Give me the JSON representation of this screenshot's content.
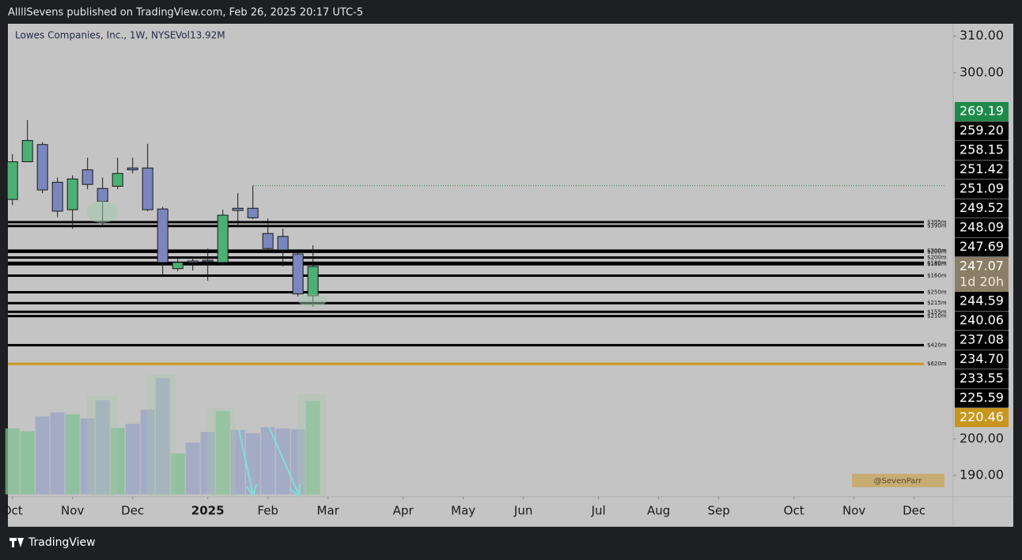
{
  "header": {
    "publisher": "AllllSevens published on TradingView.com, Feb 26, 2025 20:17 UTC-5"
  },
  "chart_data": {
    "type": "candlestick",
    "title": "Lowes Companies, Inc., 1W, NYSE",
    "volume_legend": "Vol13.92M",
    "x": [
      0,
      1,
      2,
      3,
      4,
      5,
      6,
      7,
      8,
      9,
      10,
      11,
      12,
      13,
      14,
      15,
      16,
      17,
      18,
      19,
      20
    ],
    "open": [
      265.4,
      275.7,
      280.4,
      270.1,
      262.6,
      273.5,
      268.4,
      269.0,
      274.0,
      274.0,
      262.8,
      246.5,
      248.6,
      248.8,
      248.2,
      263.0,
      263.0,
      256.1,
      255.3,
      250.5,
      239.1
    ],
    "high": [
      277.8,
      287.1,
      281.1,
      271.4,
      272.0,
      276.8,
      271.4,
      276.8,
      276.8,
      280.6,
      263.4,
      249.2,
      249.7,
      252.0,
      262.6,
      267.1,
      269.2,
      260.2,
      257.4,
      251.0,
      252.9
    ],
    "low": [
      263.9,
      275.7,
      267.1,
      260.6,
      257.4,
      268.2,
      258.5,
      268.2,
      272.5,
      262.2,
      244.5,
      245.8,
      246.0,
      243.2,
      247.5,
      257.8,
      260.0,
      251.4,
      247.1,
      238.9,
      236.1
    ],
    "close": [
      275.7,
      281.5,
      268.0,
      262.2,
      271.0,
      269.5,
      264.9,
      272.5,
      273.5,
      262.6,
      248.2,
      248.2,
      248.2,
      248.4,
      261.1,
      262.4,
      260.4,
      252.0,
      251.6,
      239.6,
      247.1
    ],
    "volume": [
      9.8,
      9.4,
      11.6,
      12.2,
      11.9,
      11.3,
      14.0,
      9.9,
      10.5,
      12.6,
      17.3,
      6.1,
      7.7,
      9.3,
      12.4,
      9.6,
      9.1,
      10.0,
      9.8,
      9.7,
      13.92
    ],
    "up_color": "#4caf73",
    "down_color": "#7a86bd",
    "volume_up_color": "#7fbf93",
    "volume_down_color": "#9aa3c6",
    "xlim": [
      -0.3,
      62.6
    ],
    "xticks": [
      {
        "value": 0,
        "label": "Oct"
      },
      {
        "value": 4,
        "label": "Nov"
      },
      {
        "value": 8,
        "label": "Dec"
      },
      {
        "value": 13,
        "label": "2025"
      },
      {
        "value": 17,
        "label": "Feb"
      },
      {
        "value": 21,
        "label": "Mar"
      },
      {
        "value": 26,
        "label": "Apr"
      },
      {
        "value": 30,
        "label": "May"
      },
      {
        "value": 34,
        "label": "Jun"
      },
      {
        "value": 39,
        "label": "Jul"
      },
      {
        "value": 43,
        "label": "Aug"
      },
      {
        "value": 47,
        "label": "Sep"
      },
      {
        "value": 52,
        "label": "Oct"
      },
      {
        "value": 56,
        "label": "Nov"
      },
      {
        "value": 60,
        "label": "Dec"
      }
    ],
    "ylim": [
      184.2,
      313.4
    ],
    "yticks": [
      {
        "value": 310,
        "label": "310.00"
      },
      {
        "value": 300,
        "label": "300.00"
      },
      {
        "value": 200,
        "label": "200.00"
      },
      {
        "value": 190,
        "label": "190.00"
      }
    ],
    "levels": [
      {
        "value": 269.19,
        "label": "269.19",
        "color": "#1e8a4a",
        "style": "dotted"
      },
      {
        "value": 259.2,
        "label": "259.20",
        "note": "$395m",
        "color": "#000000"
      },
      {
        "value": 258.15,
        "label": "258.15",
        "note": "$390m",
        "color": "#000000"
      },
      {
        "value": 251.42,
        "label": "251.42",
        "note": "$300m",
        "color": "#000000"
      },
      {
        "value": 251.09,
        "label": "251.09",
        "note": "$200m",
        "color": "#000000"
      },
      {
        "value": 249.52,
        "label": "249.52",
        "note": "$200m",
        "color": "#000000"
      },
      {
        "value": 248.09,
        "label": "248.09",
        "note": "$180m",
        "color": "#000000"
      },
      {
        "value": 247.69,
        "label": "247.69",
        "note": "$160m",
        "color": "#000000"
      },
      {
        "value": 247.07,
        "label": "247.07",
        "countdown": "1d 20h",
        "color": "#8b7e67"
      },
      {
        "value": 244.59,
        "label": "244.59",
        "note": "$160m",
        "color": "#000000"
      },
      {
        "value": 240.06,
        "label": "240.06",
        "note": "$250m",
        "color": "#000000"
      },
      {
        "value": 237.08,
        "label": "237.08",
        "note": "$215m",
        "color": "#000000"
      },
      {
        "value": 234.7,
        "label": "234.70",
        "note": "$155m",
        "color": "#000000"
      },
      {
        "value": 233.55,
        "label": "233.55",
        "note": "$210m",
        "color": "#000000"
      },
      {
        "value": 225.59,
        "label": "225.59",
        "note": "$420m",
        "color": "#000000"
      },
      {
        "value": 220.46,
        "label": "220.46",
        "note": "$620m",
        "color": "#c8961e"
      }
    ],
    "watermark": "@SevenParr"
  },
  "footer": {
    "brand": "TradingView"
  }
}
